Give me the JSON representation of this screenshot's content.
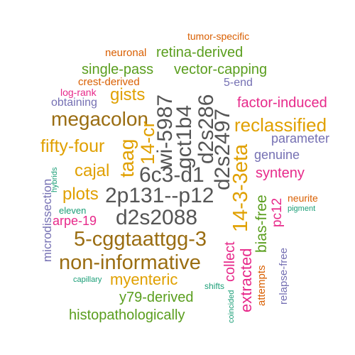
{
  "words": {
    "tumor_specific": "tumor-specific",
    "neuronal": "neuronal",
    "retina_derived": "retina-derived",
    "single_pass": "single-pass",
    "vector_capping": "vector-capping",
    "crest_derived": "crest-derived",
    "five_end": "5-end",
    "log_rank": "log-rank",
    "gists": "gists",
    "obtaining": "obtaining",
    "factor_induced": "factor-induced",
    "megacolon": "megacolon",
    "reclassified": "reclassified",
    "fifty_four": "fifty-four",
    "parameter": "parameter",
    "genuine": "genuine",
    "cajal": "cajal",
    "synteny": "synteny",
    "taag": "taag",
    "14_cr": "14-cr",
    "wi_5987": "wi-5987",
    "gct1b4": "gct1b4",
    "d2s286": "d2s286",
    "d2s2497": "d2s2497",
    "14_3_3eta": "14-3-3eta",
    "6c3_d1": "6c3-d1",
    "2p131_p12": "2p131--p12",
    "d2s2088": "d2s2088",
    "plots": "plots",
    "microdissection": "microdissection",
    "hybrids": "hybrids",
    "eleven": "eleven",
    "arpe_19": "arpe-19",
    "5_cggtaattgg_3": "5-cggtaattgg-3",
    "non_informative": "non-informative",
    "myenteric": "myenteric",
    "capillary": "capillary",
    "y79_derived": "y79-derived",
    "histopathologically": "histopathologically",
    "shifts": "shifts",
    "coincided": "coincided",
    "collect": "collect",
    "extracted": "extracted",
    "attempts": "attempts",
    "bias_free": "bias-free",
    "pc12": "pc12",
    "neurite": "neurite",
    "pigment": "pigment",
    "relapse_free": "relapse-free"
  },
  "colors": {
    "gray": "#555555",
    "green": "#5a9e1e",
    "brown": "#9a6d12",
    "gold": "#e0a000",
    "orange": "#d95f02",
    "purple": "#7570b3",
    "pink": "#e7298a",
    "teal": "#1b9e77"
  }
}
